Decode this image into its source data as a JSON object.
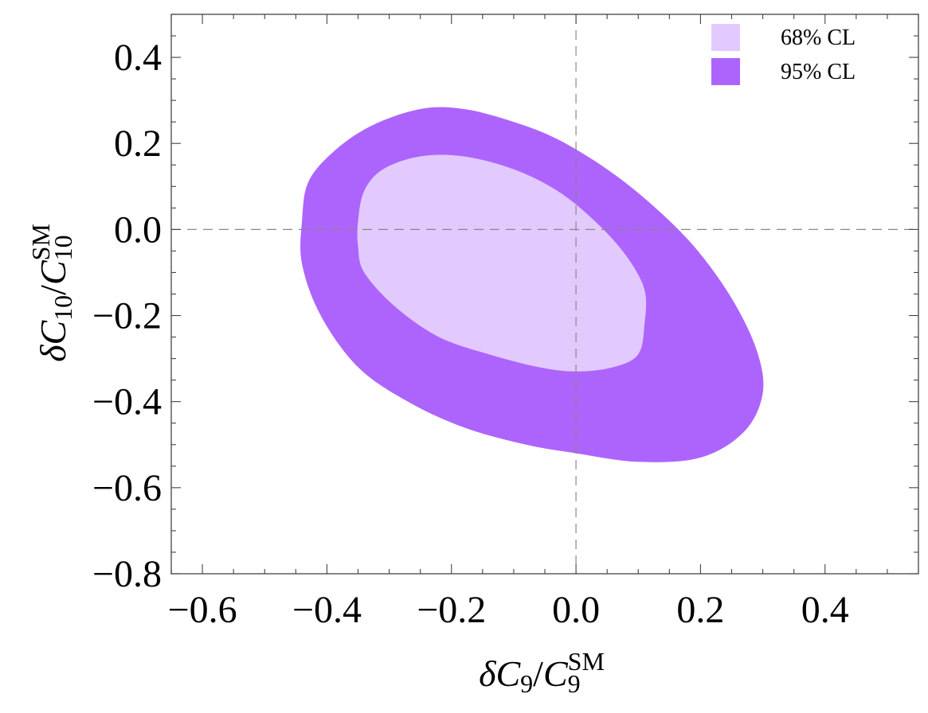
{
  "chart_data": {
    "type": "contour",
    "xlim": [
      -0.65,
      0.55
    ],
    "ylim": [
      -0.8,
      0.5
    ],
    "x_ticks": [
      {
        "value": -0.6,
        "label": "−0.6"
      },
      {
        "value": -0.4,
        "label": "−0.4"
      },
      {
        "value": -0.2,
        "label": "−0.2"
      },
      {
        "value": 0.0,
        "label": "0.0"
      },
      {
        "value": 0.2,
        "label": "0.2"
      },
      {
        "value": 0.4,
        "label": "0.4"
      }
    ],
    "y_ticks": [
      {
        "value": 0.4,
        "label": "0.4"
      },
      {
        "value": 0.2,
        "label": "0.2"
      },
      {
        "value": 0.0,
        "label": "0.0"
      },
      {
        "value": -0.2,
        "label": "−0.2"
      },
      {
        "value": -0.4,
        "label": "−0.4"
      },
      {
        "value": -0.6,
        "label": "−0.6"
      },
      {
        "value": -0.8,
        "label": "−0.8"
      }
    ],
    "xlabel": {
      "delta": "δ",
      "C": "C",
      "sub": "9",
      "slash": "/",
      "C2": "C",
      "sub2": "9",
      "sup2": "SM"
    },
    "ylabel": {
      "delta": "δ",
      "C": "C",
      "sub": "10",
      "slash": "/",
      "C2": "C",
      "sub2": "10",
      "sup2": "SM"
    },
    "reference_lines": {
      "x": 0.0,
      "y": 0.0
    },
    "legend": {
      "position": "top-right",
      "entries": [
        {
          "label": "68% CL",
          "color": "#e2caff"
        },
        {
          "label": "95% CL",
          "color": "#ad64fd"
        }
      ]
    },
    "series": [
      {
        "name": "95% CL",
        "color": "#ad64fd",
        "points": [
          [
            -0.44,
            0.02
          ],
          [
            -0.43,
            0.11
          ],
          [
            -0.39,
            0.18
          ],
          [
            -0.33,
            0.24
          ],
          [
            -0.25,
            0.28
          ],
          [
            -0.18,
            0.28
          ],
          [
            -0.1,
            0.25
          ],
          [
            -0.03,
            0.21
          ],
          [
            0.05,
            0.14
          ],
          [
            0.12,
            0.06
          ],
          [
            0.19,
            -0.04
          ],
          [
            0.25,
            -0.16
          ],
          [
            0.29,
            -0.28
          ],
          [
            0.3,
            -0.38
          ],
          [
            0.27,
            -0.47
          ],
          [
            0.2,
            -0.53
          ],
          [
            0.1,
            -0.54
          ],
          [
            0.0,
            -0.52
          ],
          [
            -0.08,
            -0.5
          ],
          [
            -0.18,
            -0.46
          ],
          [
            -0.27,
            -0.4
          ],
          [
            -0.35,
            -0.32
          ],
          [
            -0.41,
            -0.2
          ],
          [
            -0.44,
            -0.08
          ]
        ]
      },
      {
        "name": "68% CL",
        "color": "#e2caff",
        "points": [
          [
            -0.35,
            0.02
          ],
          [
            -0.34,
            0.09
          ],
          [
            -0.31,
            0.14
          ],
          [
            -0.25,
            0.17
          ],
          [
            -0.18,
            0.17
          ],
          [
            -0.1,
            0.14
          ],
          [
            -0.03,
            0.09
          ],
          [
            0.03,
            0.02
          ],
          [
            0.08,
            -0.06
          ],
          [
            0.11,
            -0.14
          ],
          [
            0.11,
            -0.22
          ],
          [
            0.1,
            -0.29
          ],
          [
            0.06,
            -0.32
          ],
          [
            0.0,
            -0.33
          ],
          [
            -0.06,
            -0.32
          ],
          [
            -0.14,
            -0.29
          ],
          [
            -0.22,
            -0.25
          ],
          [
            -0.29,
            -0.18
          ],
          [
            -0.34,
            -0.1
          ],
          [
            -0.35,
            -0.04
          ]
        ]
      }
    ]
  }
}
